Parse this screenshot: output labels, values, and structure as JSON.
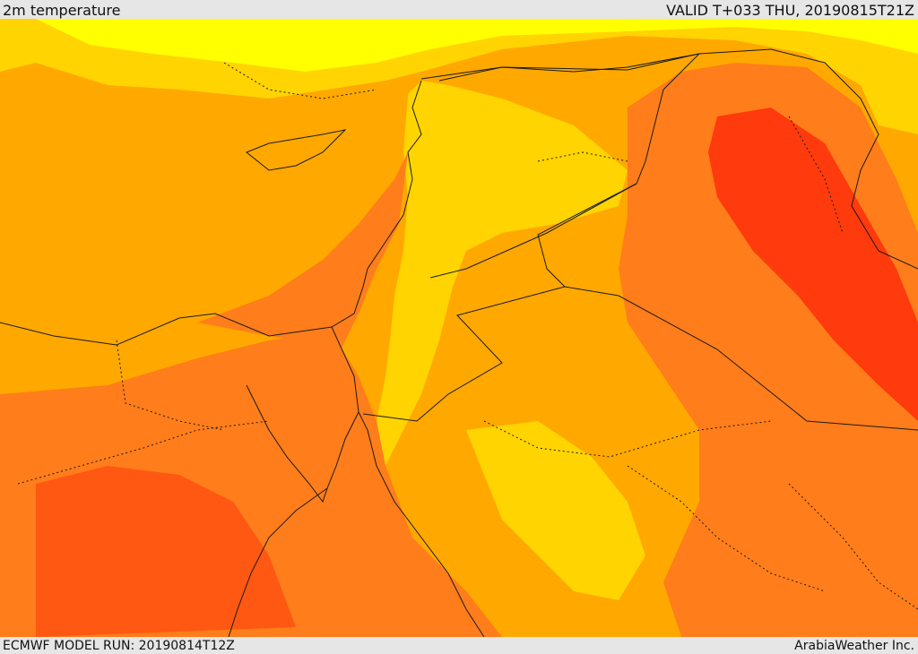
{
  "header": {
    "title": "2m temperature",
    "valid": "VALID T+033 THU, 20190815T21Z"
  },
  "footer": {
    "model_run": "ECMWF MODEL RUN: 20190814T12Z",
    "credit": "ArabiaWeather Inc."
  },
  "palette": {
    "hot": "#ff3a0c",
    "warm": "#ff7d1a",
    "mild": "#ffa800",
    "cool": "#ffd400",
    "cooler": "#ffff00",
    "border": "#1b1b1b"
  }
}
